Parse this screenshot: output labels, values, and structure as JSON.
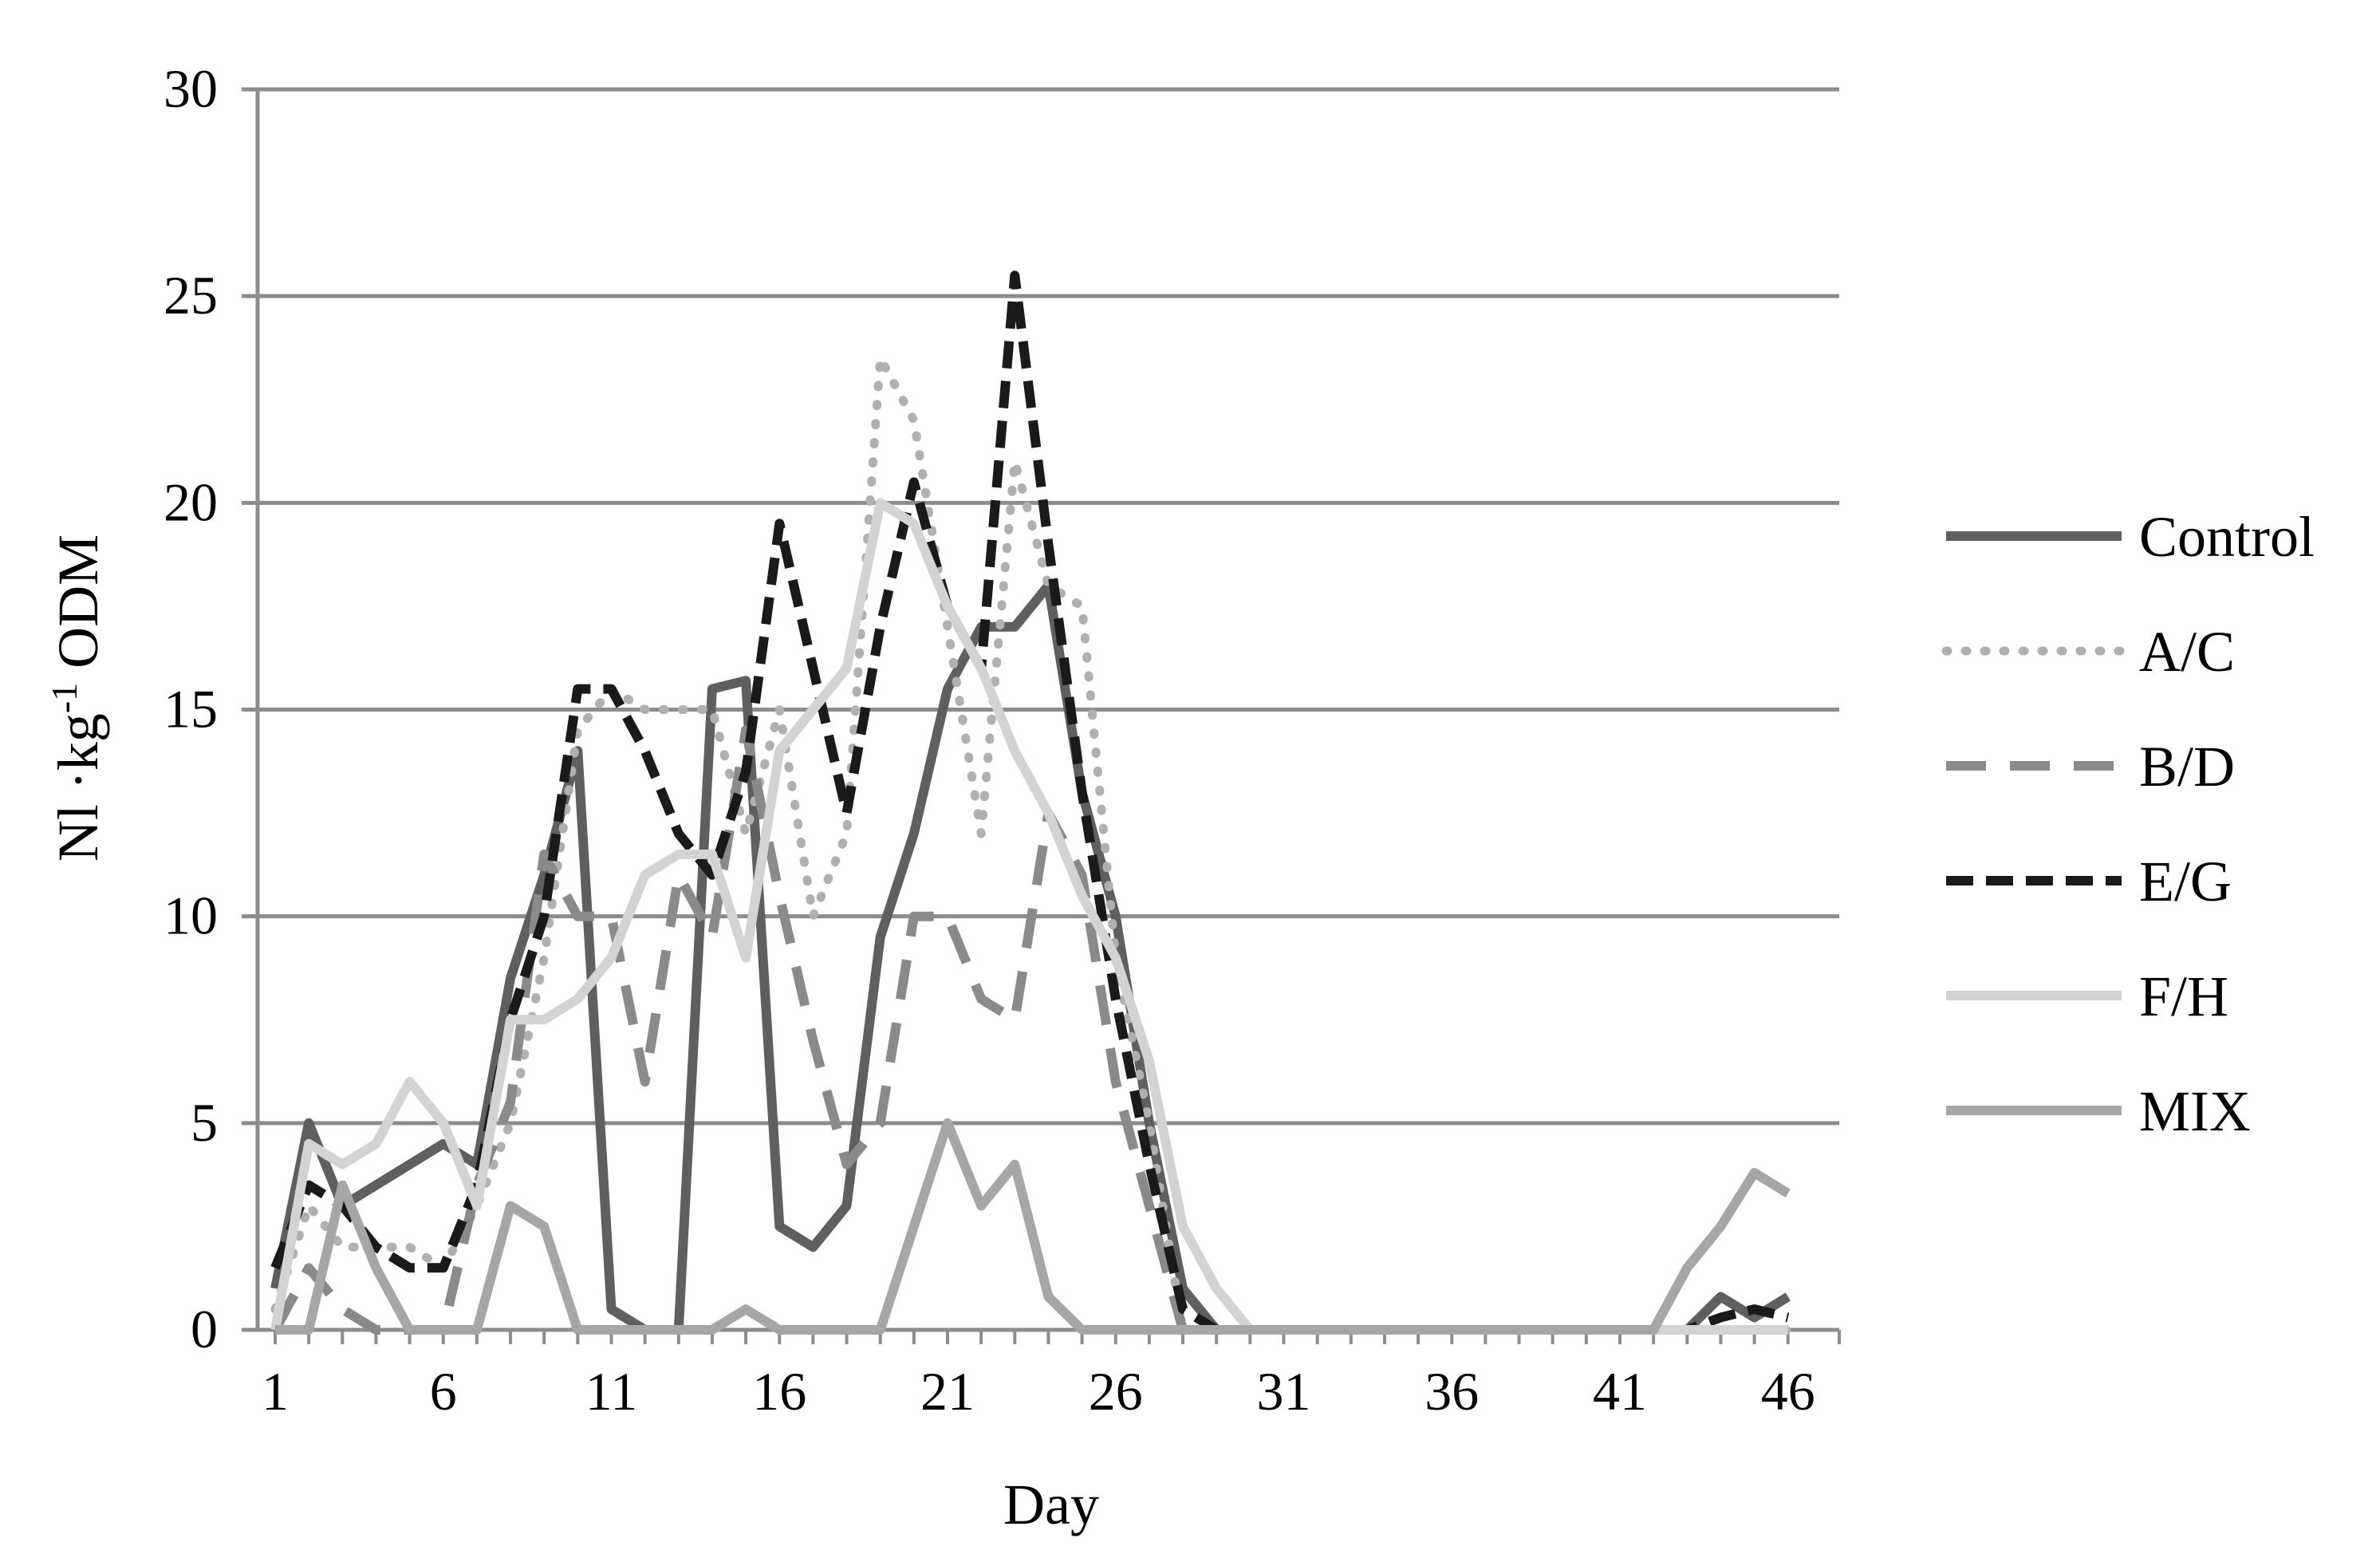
{
  "chart_data": {
    "type": "line",
    "title": "",
    "xlabel": "Day",
    "ylabel": "Nl·kg-1 ODM",
    "ylabel_parts": {
      "pre": "Nl ·kg",
      "sup": "-1",
      "post": " ODM"
    },
    "ylim": [
      0,
      30
    ],
    "xlim": [
      1,
      46
    ],
    "yticks": [
      "0",
      "5",
      "10",
      "15",
      "20",
      "25",
      "30"
    ],
    "xticks": [
      "1",
      "6",
      "11",
      "16",
      "21",
      "26",
      "31",
      "36",
      "41",
      "46"
    ],
    "grid": "horizontal",
    "legend_position": "right",
    "x": [
      1,
      2,
      3,
      4,
      5,
      6,
      7,
      8,
      9,
      10,
      11,
      12,
      13,
      14,
      15,
      16,
      17,
      18,
      19,
      20,
      21,
      22,
      23,
      24,
      25,
      26,
      27,
      28,
      29,
      30,
      31,
      32,
      33,
      34,
      35,
      36,
      37,
      38,
      39,
      40,
      41,
      42,
      43,
      44,
      45,
      46
    ],
    "series": [
      {
        "name": "Control",
        "color": "#5f5f5f",
        "dash": "solid",
        "values": [
          1,
          5,
          3,
          3.5,
          4,
          4.5,
          4,
          8.5,
          11,
          14,
          0.5,
          0,
          0,
          15.5,
          15.7,
          2.5,
          2,
          3,
          9.5,
          12,
          15.5,
          17,
          17,
          18,
          13,
          10,
          5,
          1,
          0,
          0,
          0,
          0,
          0,
          0,
          0,
          0,
          0,
          0,
          0,
          0,
          0,
          0,
          0,
          0.8,
          0.3,
          0.8
        ]
      },
      {
        "name": "A/C",
        "color": "#b0b0b0",
        "dash": "dotted",
        "values": [
          0.5,
          3,
          2,
          2,
          2,
          1.5,
          3,
          5,
          9,
          14.5,
          15.5,
          15,
          15,
          15,
          12,
          15,
          10,
          12,
          23.5,
          22,
          17,
          12,
          21,
          18,
          17.5,
          9,
          5,
          0,
          0,
          0,
          0,
          0,
          0,
          0,
          0,
          0,
          0,
          0,
          0,
          0,
          0,
          0,
          0,
          0,
          0,
          0
        ]
      },
      {
        "name": "B/D",
        "color": "#8a8a8a",
        "dash": "dashed",
        "values": [
          0,
          1.5,
          0.5,
          0,
          0,
          0,
          3.5,
          5.5,
          11.5,
          10,
          10,
          6,
          11,
          9.5,
          14.5,
          10.5,
          7,
          4,
          5,
          10,
          10,
          8,
          7.5,
          12.5,
          11,
          6,
          3,
          0,
          0,
          0,
          0,
          0,
          0,
          0,
          0,
          0,
          0,
          0,
          0,
          0,
          0,
          0,
          0,
          0,
          0,
          0
        ]
      },
      {
        "name": "E/G",
        "color": "#1a1a1a",
        "dash": "dashed",
        "values": [
          1.5,
          3.5,
          3,
          2,
          1.5,
          1.5,
          3.5,
          7.5,
          10,
          15.5,
          15.5,
          14,
          12,
          11,
          13.5,
          19.5,
          16,
          12.5,
          17,
          20.5,
          17.5,
          16,
          25.5,
          19,
          13,
          8,
          4,
          0.5,
          0,
          0,
          0,
          0,
          0,
          0,
          0,
          0,
          0,
          0,
          0,
          0,
          0,
          0,
          0,
          0.3,
          0.5,
          0.3
        ]
      },
      {
        "name": "F/H",
        "color": "#d3d3d3",
        "dash": "solid",
        "values": [
          0,
          4.5,
          4,
          4.5,
          6,
          5,
          3,
          7.5,
          7.5,
          8,
          9,
          11,
          11.5,
          11.5,
          9,
          14,
          15,
          16,
          20,
          19.5,
          17.5,
          16,
          14,
          12.5,
          10.5,
          9,
          6.5,
          2.5,
          1,
          0,
          0,
          0,
          0,
          0,
          0,
          0,
          0,
          0,
          0,
          0,
          0,
          0,
          0,
          0,
          0,
          0
        ]
      },
      {
        "name": "MIX",
        "color": "#a6a6a6",
        "dash": "solid",
        "values": [
          0,
          0,
          3.5,
          1.5,
          0,
          0,
          0,
          3,
          2.5,
          0,
          0,
          0,
          0,
          0,
          0.5,
          0,
          0,
          0,
          0,
          2.5,
          5,
          3,
          4,
          0.8,
          0,
          0,
          0,
          0,
          0,
          0,
          0,
          0,
          0,
          0,
          0,
          0,
          0,
          0,
          0,
          0,
          0,
          0,
          1.5,
          2.5,
          3.8,
          3.3
        ]
      }
    ]
  }
}
